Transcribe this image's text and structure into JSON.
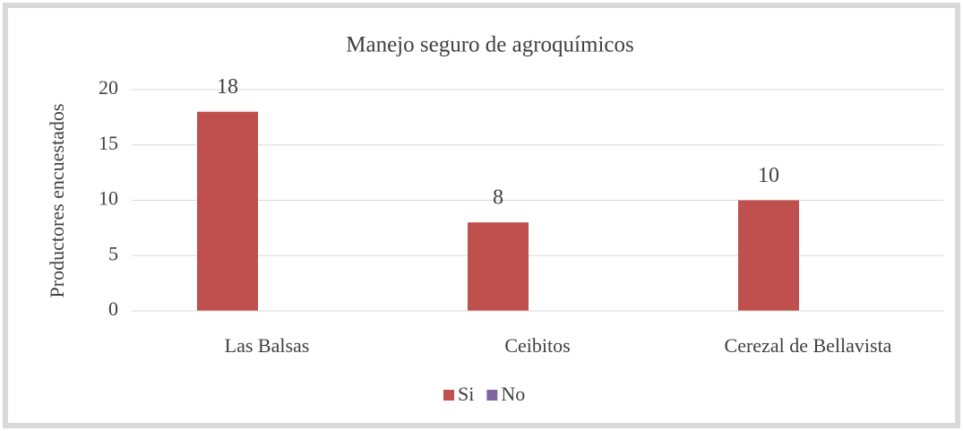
{
  "chart_data": {
    "type": "bar",
    "title": "Manejo seguro de agroquímicos",
    "y_label": "Productores encuestados",
    "categories": [
      "Las Balsas",
      "Ceibitos",
      "Cerezal de Bellavista"
    ],
    "series": [
      {
        "name": "Si",
        "color": "#c0504d",
        "values": [
          18,
          8,
          10
        ]
      },
      {
        "name": "No",
        "color": "#8064a2",
        "values": [
          null,
          null,
          null
        ]
      }
    ],
    "ylim": [
      0,
      20
    ],
    "yticks": [
      0,
      5,
      10,
      15,
      20
    ],
    "grid": true,
    "legend": "bottom"
  }
}
